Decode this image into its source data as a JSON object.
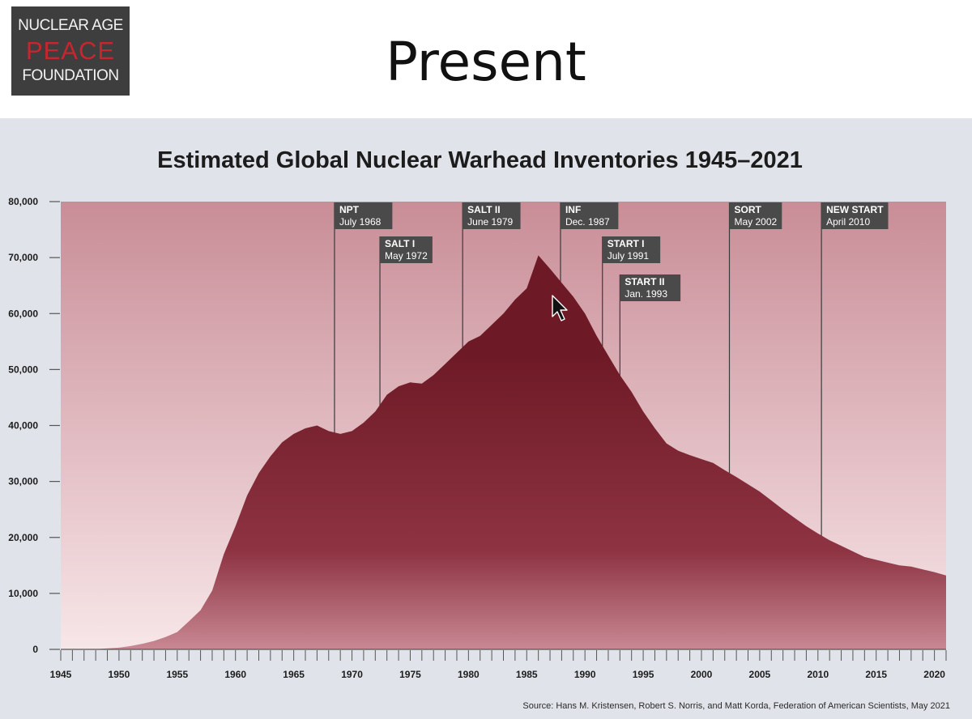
{
  "slide": {
    "title": "Present",
    "logo": {
      "line1": "NUCLEAR AGE",
      "line2": "PEACE",
      "line3": "FOUNDATION"
    }
  },
  "colors": {
    "area_fill": "#7a1f2b",
    "background_top": "#c98d97",
    "background_bottom": "#f7e6e8",
    "treaty_box": "#4a4a4a",
    "panel": "#e1e3ea"
  },
  "chart_data": {
    "type": "area",
    "title": "Estimated Global Nuclear Warhead Inventories 1945–2021",
    "xlabel": "",
    "ylabel": "",
    "xlim": [
      1945,
      2021
    ],
    "ylim": [
      0,
      80000
    ],
    "x_ticks": [
      "1945",
      "1950",
      "1955",
      "1960",
      "1965",
      "1970",
      "1975",
      "1980",
      "1985",
      "1990",
      "1995",
      "2000",
      "2005",
      "2010",
      "2015",
      "2020"
    ],
    "y_ticks": [
      "0",
      "10,000",
      "20,000",
      "30,000",
      "40,000",
      "50,000",
      "60,000",
      "70,000",
      "80,000"
    ],
    "grid": false,
    "series": [
      {
        "x": [
          1945,
          1946,
          1947,
          1948,
          1949,
          1950,
          1951,
          1952,
          1953,
          1954,
          1955,
          1956,
          1957,
          1958,
          1959,
          1960,
          1961,
          1962,
          1963,
          1964,
          1965,
          1966,
          1967,
          1968,
          1969,
          1970,
          1971,
          1972,
          1973,
          1974,
          1975,
          1976,
          1977,
          1978,
          1979,
          1980,
          1981,
          1982,
          1983,
          1984,
          1985,
          1986,
          1987,
          1988,
          1989,
          1990,
          1991,
          1992,
          1993,
          1994,
          1995,
          1996,
          1997,
          1998,
          1999,
          2000,
          2001,
          2002,
          2003,
          2004,
          2005,
          2006,
          2007,
          2008,
          2009,
          2010,
          2011,
          2012,
          2013,
          2014,
          2015,
          2016,
          2017,
          2018,
          2019,
          2020,
          2021
        ],
        "y": [
          2,
          9,
          13,
          50,
          170,
          304,
          600,
          1000,
          1500,
          2200,
          3100,
          5000,
          7000,
          10500,
          17000,
          22000,
          27500,
          31500,
          34500,
          37000,
          38500,
          39500,
          40000,
          39000,
          38500,
          39000,
          40500,
          42500,
          45500,
          47000,
          47700,
          47500,
          49000,
          51000,
          53000,
          55000,
          56000,
          58000,
          60000,
          62500,
          64500,
          70400,
          68000,
          65500,
          63000,
          60000,
          56000,
          52500,
          49000,
          46000,
          42500,
          39500,
          36800,
          35500,
          34700,
          34000,
          33300,
          32000,
          30800,
          29500,
          28200,
          26600,
          25000,
          23500,
          22000,
          20700,
          19500,
          18500,
          17500,
          16500,
          16000,
          15500,
          15000,
          14800,
          14300,
          13800,
          13200
        ]
      }
    ],
    "treaties": [
      {
        "name": "NPT",
        "date": "July 1968",
        "year": 1968.5,
        "row": 0
      },
      {
        "name": "SALT I",
        "date": "May 1972",
        "year": 1972.4,
        "row": 1
      },
      {
        "name": "SALT II",
        "date": "June 1979",
        "year": 1979.5,
        "row": 0
      },
      {
        "name": "INF",
        "date": "Dec. 1987",
        "year": 1987.9,
        "row": 0
      },
      {
        "name": "START I",
        "date": "July 1991",
        "year": 1991.5,
        "row": 1
      },
      {
        "name": "START II",
        "date": "Jan. 1993",
        "year": 1993.0,
        "row": 2
      },
      {
        "name": "SORT",
        "date": "May 2002",
        "year": 2002.4,
        "row": 0
      },
      {
        "name": "NEW START",
        "date": "April 2010",
        "year": 2010.3,
        "row": 0
      }
    ]
  },
  "source": "Source: Hans M. Kristensen, Robert S. Norris, and Matt Korda, Federation of American Scientists, May 2021"
}
